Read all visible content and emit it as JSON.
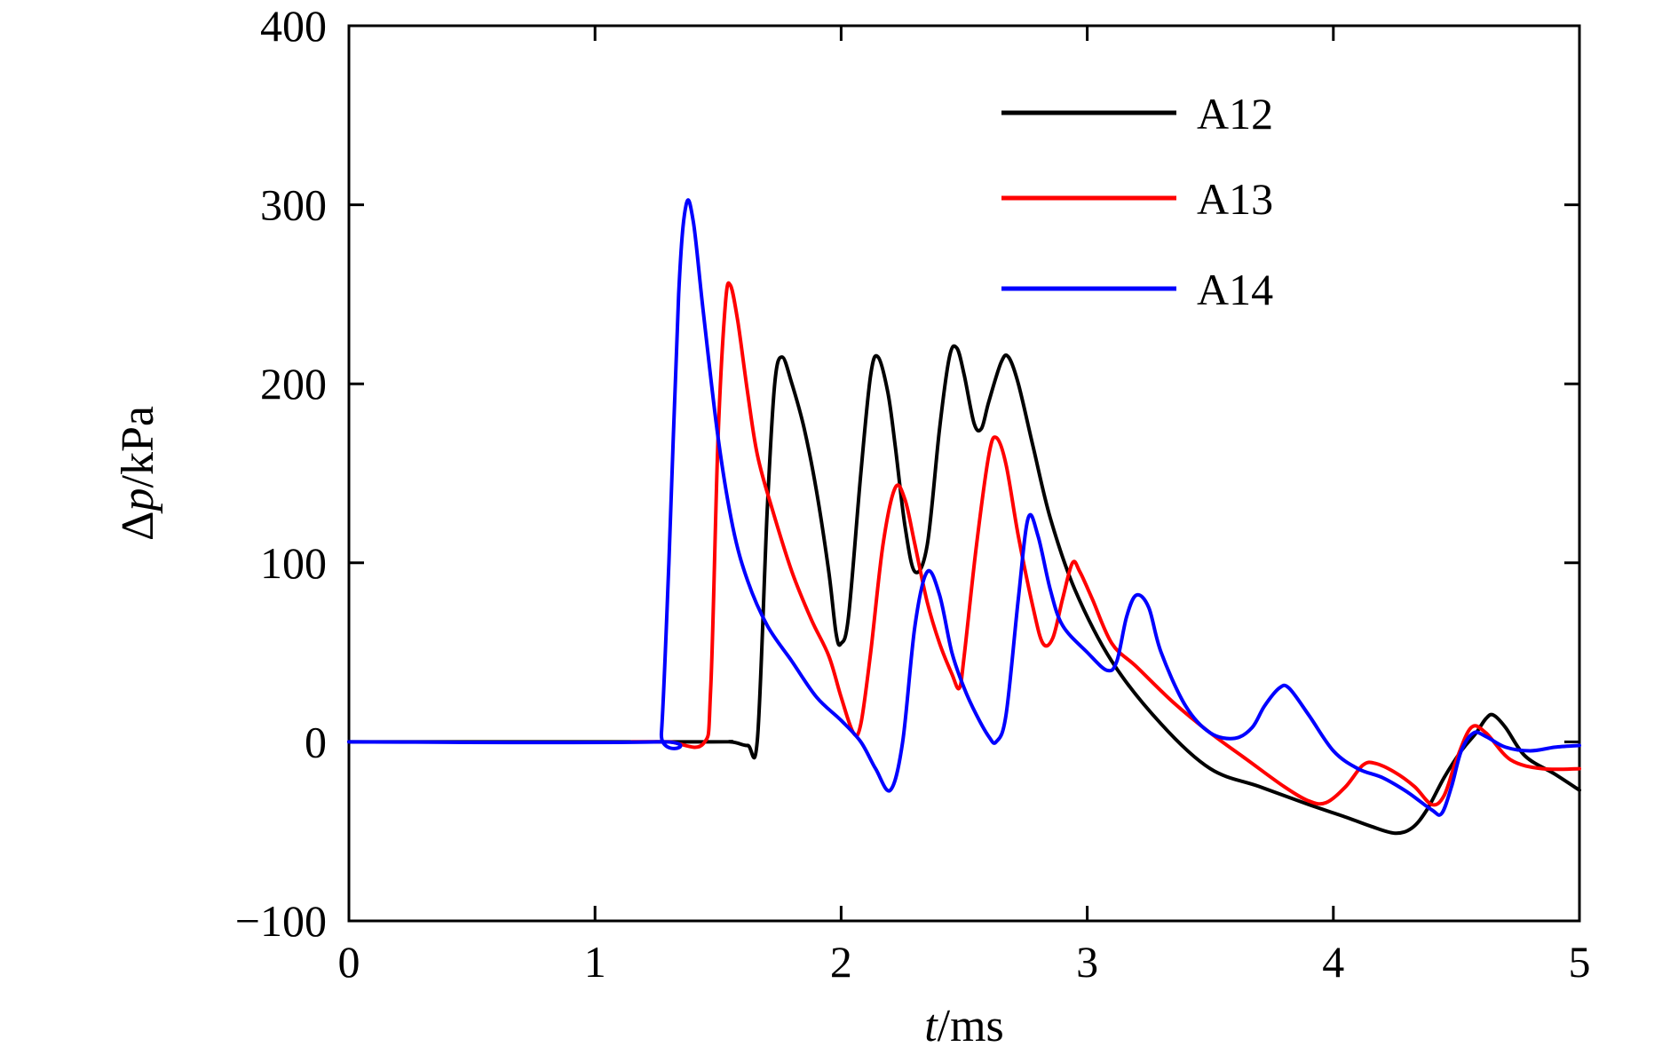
{
  "chart_data": {
    "type": "line",
    "xlabel_italic": "t",
    "xlabel_rest": "/ms",
    "ylabel_prefix": "Δ",
    "ylabel_italic": "p",
    "ylabel_rest": "/kPa",
    "xlim": [
      0,
      5
    ],
    "ylim": [
      -100,
      400
    ],
    "xticks": [
      0,
      1,
      2,
      3,
      4,
      5
    ],
    "yticks": [
      -100,
      0,
      100,
      200,
      300,
      400
    ],
    "xtick_labels": [
      "0",
      "1",
      "2",
      "3",
      "4",
      "5"
    ],
    "ytick_labels": [
      "−100",
      "0",
      "100",
      "200",
      "300",
      "400"
    ],
    "grid": false,
    "legend_position": "top-right",
    "series": [
      {
        "name": "A12",
        "color": "#000000",
        "points": [
          [
            0,
            0
          ],
          [
            1.4,
            0
          ],
          [
            1.55,
            0
          ],
          [
            1.62,
            -2
          ],
          [
            1.66,
            2
          ],
          [
            1.7,
            130
          ],
          [
            1.73,
            200
          ],
          [
            1.76,
            215
          ],
          [
            1.8,
            200
          ],
          [
            1.85,
            175
          ],
          [
            1.9,
            140
          ],
          [
            1.95,
            95
          ],
          [
            1.98,
            60
          ],
          [
            2.0,
            55
          ],
          [
            2.03,
            70
          ],
          [
            2.08,
            150
          ],
          [
            2.12,
            205
          ],
          [
            2.15,
            215
          ],
          [
            2.19,
            195
          ],
          [
            2.22,
            165
          ],
          [
            2.26,
            120
          ],
          [
            2.3,
            95
          ],
          [
            2.35,
            110
          ],
          [
            2.4,
            175
          ],
          [
            2.44,
            215
          ],
          [
            2.47,
            220
          ],
          [
            2.5,
            205
          ],
          [
            2.54,
            178
          ],
          [
            2.57,
            175
          ],
          [
            2.6,
            190
          ],
          [
            2.65,
            212
          ],
          [
            2.68,
            215
          ],
          [
            2.72,
            200
          ],
          [
            2.78,
            165
          ],
          [
            2.85,
            125
          ],
          [
            2.95,
            85
          ],
          [
            3.1,
            45
          ],
          [
            3.3,
            10
          ],
          [
            3.5,
            -15
          ],
          [
            3.7,
            -25
          ],
          [
            3.9,
            -35
          ],
          [
            4.05,
            -42
          ],
          [
            4.15,
            -47
          ],
          [
            4.25,
            -51
          ],
          [
            4.32,
            -48
          ],
          [
            4.38,
            -38
          ],
          [
            4.45,
            -20
          ],
          [
            4.52,
            -5
          ],
          [
            4.58,
            5
          ],
          [
            4.62,
            13
          ],
          [
            4.65,
            15
          ],
          [
            4.7,
            8
          ],
          [
            4.78,
            -8
          ],
          [
            4.9,
            -18
          ],
          [
            5.0,
            -27
          ]
        ]
      },
      {
        "name": "A13",
        "color": "#ff0000",
        "points": [
          [
            1.15,
            0
          ],
          [
            1.3,
            0
          ],
          [
            1.44,
            -1
          ],
          [
            1.47,
            30
          ],
          [
            1.5,
            170
          ],
          [
            1.53,
            245
          ],
          [
            1.55,
            255
          ],
          [
            1.58,
            235
          ],
          [
            1.62,
            195
          ],
          [
            1.66,
            160
          ],
          [
            1.72,
            130
          ],
          [
            1.8,
            95
          ],
          [
            1.88,
            68
          ],
          [
            1.95,
            48
          ],
          [
            2.0,
            25
          ],
          [
            2.05,
            5
          ],
          [
            2.08,
            10
          ],
          [
            2.12,
            50
          ],
          [
            2.17,
            110
          ],
          [
            2.22,
            142
          ],
          [
            2.26,
            135
          ],
          [
            2.3,
            110
          ],
          [
            2.35,
            78
          ],
          [
            2.4,
            55
          ],
          [
            2.45,
            38
          ],
          [
            2.48,
            30
          ],
          [
            2.5,
            48
          ],
          [
            2.55,
            110
          ],
          [
            2.6,
            160
          ],
          [
            2.63,
            170
          ],
          [
            2.67,
            155
          ],
          [
            2.72,
            115
          ],
          [
            2.78,
            75
          ],
          [
            2.82,
            55
          ],
          [
            2.86,
            58
          ],
          [
            2.9,
            80
          ],
          [
            2.94,
            100
          ],
          [
            2.97,
            95
          ],
          [
            3.02,
            80
          ],
          [
            3.1,
            55
          ],
          [
            3.2,
            42
          ],
          [
            3.35,
            22
          ],
          [
            3.5,
            5
          ],
          [
            3.65,
            -10
          ],
          [
            3.8,
            -25
          ],
          [
            3.9,
            -33
          ],
          [
            3.97,
            -34
          ],
          [
            4.05,
            -25
          ],
          [
            4.12,
            -13
          ],
          [
            4.17,
            -12
          ],
          [
            4.25,
            -17
          ],
          [
            4.33,
            -25
          ],
          [
            4.4,
            -35
          ],
          [
            4.45,
            -30
          ],
          [
            4.5,
            -10
          ],
          [
            4.56,
            8
          ],
          [
            4.62,
            5
          ],
          [
            4.72,
            -10
          ],
          [
            4.85,
            -15
          ],
          [
            5.0,
            -15
          ]
        ]
      },
      {
        "name": "A14",
        "color": "#0000ff",
        "points": [
          [
            0,
            0
          ],
          [
            1.25,
            0
          ],
          [
            1.27,
            5
          ],
          [
            1.3,
            100
          ],
          [
            1.34,
            250
          ],
          [
            1.37,
            300
          ],
          [
            1.4,
            290
          ],
          [
            1.44,
            240
          ],
          [
            1.5,
            170
          ],
          [
            1.56,
            120
          ],
          [
            1.62,
            90
          ],
          [
            1.7,
            65
          ],
          [
            1.8,
            45
          ],
          [
            1.9,
            25
          ],
          [
            2.0,
            12
          ],
          [
            2.08,
            0
          ],
          [
            2.14,
            -15
          ],
          [
            2.2,
            -27
          ],
          [
            2.25,
            0
          ],
          [
            2.3,
            65
          ],
          [
            2.35,
            95
          ],
          [
            2.4,
            82
          ],
          [
            2.45,
            50
          ],
          [
            2.5,
            30
          ],
          [
            2.55,
            15
          ],
          [
            2.6,
            3
          ],
          [
            2.63,
            0
          ],
          [
            2.67,
            15
          ],
          [
            2.72,
            80
          ],
          [
            2.76,
            125
          ],
          [
            2.8,
            115
          ],
          [
            2.85,
            85
          ],
          [
            2.9,
            65
          ],
          [
            3.0,
            50
          ],
          [
            3.08,
            40
          ],
          [
            3.12,
            45
          ],
          [
            3.16,
            70
          ],
          [
            3.2,
            82
          ],
          [
            3.25,
            75
          ],
          [
            3.3,
            50
          ],
          [
            3.4,
            20
          ],
          [
            3.5,
            5
          ],
          [
            3.6,
            2
          ],
          [
            3.67,
            8
          ],
          [
            3.72,
            20
          ],
          [
            3.78,
            30
          ],
          [
            3.82,
            30
          ],
          [
            3.9,
            15
          ],
          [
            4.0,
            -5
          ],
          [
            4.1,
            -15
          ],
          [
            4.2,
            -20
          ],
          [
            4.3,
            -28
          ],
          [
            4.4,
            -38
          ],
          [
            4.44,
            -40
          ],
          [
            4.48,
            -25
          ],
          [
            4.52,
            -5
          ],
          [
            4.57,
            5
          ],
          [
            4.62,
            3
          ],
          [
            4.7,
            -3
          ],
          [
            4.8,
            -5
          ],
          [
            4.9,
            -3
          ],
          [
            5.0,
            -2
          ]
        ]
      }
    ]
  }
}
